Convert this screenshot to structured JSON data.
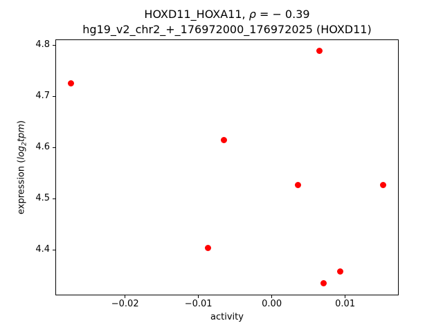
{
  "figure": {
    "title_line1_prefix": "HOXD11_HOXA11, ",
    "title_rho": "ρ",
    "title_line1_suffix": " = − 0.39",
    "title_line2": "hg19_v2_chr2_+_176972000_176972025 (HOXD11)",
    "xlabel": "activity",
    "ylabel_prefix": "expression (",
    "ylabel_math_log": "log",
    "ylabel_math_sub": "2",
    "ylabel_math_tpm": "tpm",
    "ylabel_suffix": ")"
  },
  "chart_data": {
    "type": "scatter",
    "title": "HOXD11_HOXA11, ρ = −0.39\nhg19_v2_chr2_+_176972000_176972025 (HOXD11)",
    "xlabel": "activity",
    "ylabel": "expression (log2tpm)",
    "correlation_rho": -0.39,
    "marker_color": "#ff0000",
    "marker_size_px": 9,
    "grid": false,
    "legend": false,
    "xlim": [
      -0.0295,
      0.0173
    ],
    "ylim": [
      4.311,
      4.811
    ],
    "xticks": [
      {
        "value": -0.02,
        "label": "−0.02"
      },
      {
        "value": -0.01,
        "label": "−0.01"
      },
      {
        "value": 0.0,
        "label": "0.00"
      },
      {
        "value": 0.01,
        "label": "0.01"
      }
    ],
    "yticks": [
      {
        "value": 4.4,
        "label": "4.4"
      },
      {
        "value": 4.5,
        "label": "4.5"
      },
      {
        "value": 4.6,
        "label": "4.6"
      },
      {
        "value": 4.7,
        "label": "4.7"
      },
      {
        "value": 4.8,
        "label": "4.8"
      }
    ],
    "points": [
      {
        "x": -0.0274,
        "y": 4.725
      },
      {
        "x": -0.0087,
        "y": 4.404
      },
      {
        "x": -0.0065,
        "y": 4.614
      },
      {
        "x": 0.0036,
        "y": 4.526
      },
      {
        "x": 0.0065,
        "y": 4.789
      },
      {
        "x": 0.0071,
        "y": 4.335
      },
      {
        "x": 0.0093,
        "y": 4.357
      },
      {
        "x": 0.0152,
        "y": 4.526
      }
    ]
  }
}
